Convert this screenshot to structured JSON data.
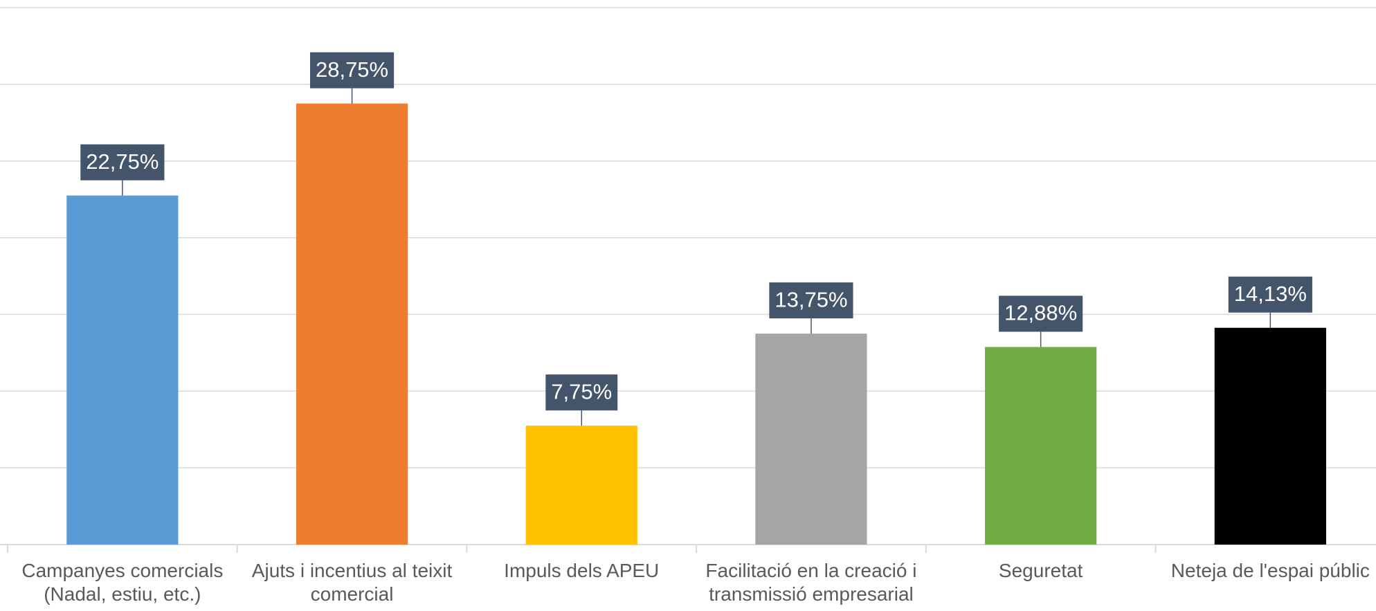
{
  "chart_data": {
    "type": "bar",
    "categories": [
      "Campanyes comercials (Nadal, estiu, etc.)",
      "Ajuts i incentius al teixit comercial",
      "Impuls dels APEU",
      "Facilitació en la creació i transmissió empresarial",
      "Seguretat",
      "Neteja de l'espai públic"
    ],
    "values": [
      22.75,
      28.75,
      7.75,
      13.75,
      12.88,
      14.13
    ],
    "value_labels": [
      "22,75%",
      "28,75%",
      "7,75%",
      "13,75%",
      "12,88%",
      "14,13%"
    ],
    "colors": [
      "#5b9bd5",
      "#ed7d31",
      "#ffc000",
      "#a5a5a5",
      "#70ad47",
      "#000000"
    ],
    "ylim": [
      0,
      35
    ],
    "yticks": [
      0,
      5,
      10,
      15,
      20,
      25,
      30,
      35
    ],
    "grid": true
  }
}
